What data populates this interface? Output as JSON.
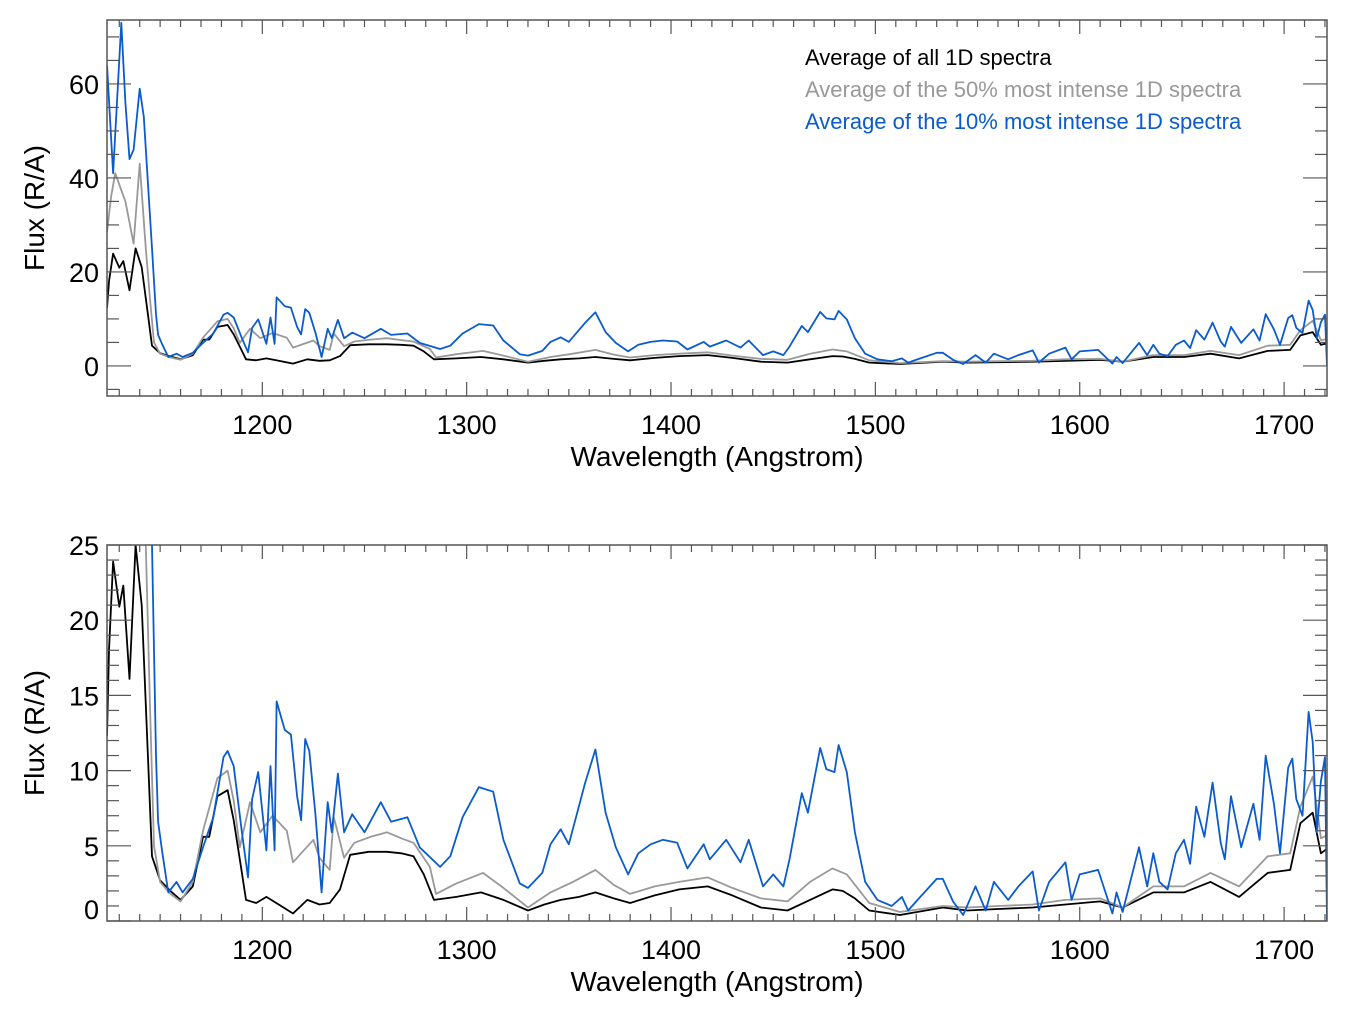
{
  "colors": {
    "all": "#000000",
    "top50": "#999999",
    "top10": "#0a5ccc",
    "frame": "#555555"
  },
  "chart_data": [
    {
      "type": "line",
      "title": "",
      "xlabel": "Wavelength (Angstrom)",
      "ylabel": "Flux (R/A)",
      "xlim": [
        1124,
        1721
      ],
      "ylim": [
        -6.4,
        73.6
      ],
      "xticks": [
        1200,
        1300,
        1400,
        1500,
        1600,
        1700
      ],
      "xtick_labels": [
        "1200",
        "1300",
        "1400",
        "1500",
        "1600",
        "1700"
      ],
      "yticks": [
        0,
        20,
        40,
        60
      ],
      "ytick_labels": [
        "0",
        "20",
        "40",
        "60"
      ],
      "x_minor_step": 10,
      "y_minor_step": 5,
      "grid": false,
      "legend_placement": "top-right",
      "legend": [
        "Average of all 1D spectra",
        "Average of the 50% most intense 1D spectra",
        "Average of the 10% most intense 1D spectra"
      ]
    },
    {
      "type": "line",
      "title": "",
      "xlabel": "Wavelength (Angstrom)",
      "ylabel": "Flux (R/A)",
      "xlim": [
        1124,
        1721
      ],
      "ylim": [
        0,
        25
      ],
      "xticks": [
        1200,
        1300,
        1400,
        1500,
        1600,
        1700
      ],
      "xtick_labels": [
        "1200",
        "1300",
        "1400",
        "1500",
        "1600",
        "1700"
      ],
      "yticks": [
        0,
        5,
        10,
        15,
        20,
        25
      ],
      "ytick_labels": [
        "0",
        "5",
        "10",
        "15",
        "20",
        "25"
      ],
      "x_minor_step": 10,
      "y_minor_step": 1,
      "grid": false
    }
  ],
  "series": [
    {
      "name": "Average of all 1D spectra",
      "color_key": "all",
      "points": [
        [
          1124,
          12.3
        ],
        [
          1125,
          18
        ],
        [
          1127,
          23.9
        ],
        [
          1130,
          20.9
        ],
        [
          1132,
          22.3
        ],
        [
          1135,
          16.1
        ],
        [
          1138,
          25
        ],
        [
          1141,
          21
        ],
        [
          1144,
          11
        ],
        [
          1146,
          4.3
        ],
        [
          1150,
          2.7
        ],
        [
          1155,
          2
        ],
        [
          1160,
          1.4
        ],
        [
          1166,
          2.3
        ],
        [
          1171,
          5.6
        ],
        [
          1174,
          5.6
        ],
        [
          1178,
          8.3
        ],
        [
          1183,
          8.7
        ],
        [
          1186,
          6.7
        ],
        [
          1190,
          3.2
        ],
        [
          1192,
          1.4
        ],
        [
          1197,
          1.2
        ],
        [
          1202,
          1.6
        ],
        [
          1208,
          1.1
        ],
        [
          1215,
          0.5
        ],
        [
          1222,
          1.4
        ],
        [
          1228,
          1.1
        ],
        [
          1233,
          1.2
        ],
        [
          1238,
          2.1
        ],
        [
          1243,
          4.4
        ],
        [
          1252,
          4.6
        ],
        [
          1261,
          4.6
        ],
        [
          1268,
          4.5
        ],
        [
          1274,
          4.3
        ],
        [
          1279,
          3.1
        ],
        [
          1284,
          1.4
        ],
        [
          1295,
          1.6
        ],
        [
          1307,
          1.9
        ],
        [
          1318,
          1.4
        ],
        [
          1330,
          0.7
        ],
        [
          1338,
          1.1
        ],
        [
          1346,
          1.4
        ],
        [
          1355,
          1.6
        ],
        [
          1363,
          1.9
        ],
        [
          1372,
          1.5
        ],
        [
          1380,
          1.2
        ],
        [
          1392,
          1.7
        ],
        [
          1404,
          2.1
        ],
        [
          1418,
          2.3
        ],
        [
          1430,
          1.7
        ],
        [
          1444,
          0.9
        ],
        [
          1457,
          0.7
        ],
        [
          1468,
          1.4
        ],
        [
          1479,
          2.1
        ],
        [
          1484,
          2
        ],
        [
          1490,
          1.5
        ],
        [
          1497,
          0.7
        ],
        [
          1512,
          0.4
        ],
        [
          1533,
          0.9
        ],
        [
          1545,
          0.7
        ],
        [
          1560,
          0.8
        ],
        [
          1577,
          0.9
        ],
        [
          1593,
          1.1
        ],
        [
          1610,
          1.3
        ],
        [
          1621,
          0.9
        ],
        [
          1636,
          1.9
        ],
        [
          1651,
          1.9
        ],
        [
          1664,
          2.6
        ],
        [
          1678,
          1.6
        ],
        [
          1692,
          3.2
        ],
        [
          1703,
          3.4
        ],
        [
          1708,
          6.5
        ],
        [
          1714,
          7.2
        ],
        [
          1718,
          4.5
        ],
        [
          1721,
          4.8
        ]
      ]
    },
    {
      "name": "Average of the 50% most intense 1D spectra",
      "color_key": "top50",
      "points": [
        [
          1124,
          28.5
        ],
        [
          1126,
          36
        ],
        [
          1128,
          41
        ],
        [
          1133,
          35
        ],
        [
          1137,
          26
        ],
        [
          1140,
          43
        ],
        [
          1143,
          25
        ],
        [
          1145,
          14.5
        ],
        [
          1147,
          5
        ],
        [
          1150,
          2.6
        ],
        [
          1155,
          1.8
        ],
        [
          1160,
          1.3
        ],
        [
          1166,
          2.6
        ],
        [
          1171,
          6
        ],
        [
          1178,
          9.5
        ],
        [
          1183,
          10
        ],
        [
          1186,
          8
        ],
        [
          1189,
          4.9
        ],
        [
          1194,
          7.9
        ],
        [
          1199,
          5.9
        ],
        [
          1205,
          7
        ],
        [
          1212,
          6
        ],
        [
          1215,
          3.9
        ],
        [
          1225,
          5.4
        ],
        [
          1228,
          4.2
        ],
        [
          1233,
          3.4
        ],
        [
          1235,
          6.9
        ],
        [
          1240,
          4.2
        ],
        [
          1245,
          5.2
        ],
        [
          1253,
          5.6
        ],
        [
          1261,
          5.9
        ],
        [
          1268,
          5.5
        ],
        [
          1274,
          5.2
        ],
        [
          1282,
          3.6
        ],
        [
          1285,
          1.8
        ],
        [
          1295,
          2.5
        ],
        [
          1308,
          3.2
        ],
        [
          1318,
          2.2
        ],
        [
          1330,
          0.9
        ],
        [
          1341,
          1.9
        ],
        [
          1352,
          2.6
        ],
        [
          1363,
          3.4
        ],
        [
          1372,
          2.4
        ],
        [
          1380,
          1.8
        ],
        [
          1392,
          2.3
        ],
        [
          1404,
          2.6
        ],
        [
          1418,
          2.9
        ],
        [
          1430,
          2.2
        ],
        [
          1444,
          1.5
        ],
        [
          1457,
          1.3
        ],
        [
          1468,
          2.6
        ],
        [
          1479,
          3.5
        ],
        [
          1486,
          3.1
        ],
        [
          1497,
          1.2
        ],
        [
          1512,
          0.6
        ],
        [
          1533,
          1
        ],
        [
          1545,
          0.9
        ],
        [
          1560,
          1
        ],
        [
          1577,
          1.1
        ],
        [
          1593,
          1.4
        ],
        [
          1610,
          1.5
        ],
        [
          1621,
          0.9
        ],
        [
          1636,
          2.3
        ],
        [
          1651,
          2.3
        ],
        [
          1664,
          3.2
        ],
        [
          1678,
          2.3
        ],
        [
          1692,
          4.3
        ],
        [
          1703,
          4.5
        ],
        [
          1708,
          7.6
        ],
        [
          1714,
          9.6
        ],
        [
          1718,
          5.5
        ],
        [
          1721,
          5.7
        ]
      ]
    },
    {
      "name": "Average of the 10% most intense 1D spectra",
      "color_key": "top10",
      "points": [
        [
          1124,
          64
        ],
        [
          1127,
          41
        ],
        [
          1131,
          73
        ],
        [
          1133,
          56
        ],
        [
          1135,
          44
        ],
        [
          1137,
          46
        ],
        [
          1140,
          59
        ],
        [
          1142,
          53
        ],
        [
          1146,
          25
        ],
        [
          1148,
          11
        ],
        [
          1149,
          6.6
        ],
        [
          1151,
          4.6
        ],
        [
          1154,
          1.9
        ],
        [
          1158,
          2.6
        ],
        [
          1161,
          1.9
        ],
        [
          1166,
          2.8
        ],
        [
          1171,
          4.9
        ],
        [
          1176,
          6.9
        ],
        [
          1181,
          10.9
        ],
        [
          1183,
          11.3
        ],
        [
          1186,
          10.3
        ],
        [
          1190,
          5.9
        ],
        [
          1193,
          2.9
        ],
        [
          1195,
          8.1
        ],
        [
          1198,
          9.9
        ],
        [
          1202,
          4.7
        ],
        [
          1204,
          10.3
        ],
        [
          1206,
          4.7
        ],
        [
          1207,
          14.6
        ],
        [
          1211,
          12.7
        ],
        [
          1214,
          12.4
        ],
        [
          1217,
          8.3
        ],
        [
          1219,
          6.7
        ],
        [
          1221,
          12.1
        ],
        [
          1223,
          11.3
        ],
        [
          1226,
          7.1
        ],
        [
          1229,
          1.9
        ],
        [
          1232,
          7.9
        ],
        [
          1234,
          5.9
        ],
        [
          1237,
          9.8
        ],
        [
          1240,
          5.9
        ],
        [
          1244,
          7.1
        ],
        [
          1250,
          5.9
        ],
        [
          1258,
          7.9
        ],
        [
          1263,
          6.6
        ],
        [
          1271,
          6.9
        ],
        [
          1277,
          4.9
        ],
        [
          1287,
          3.6
        ],
        [
          1292,
          4.3
        ],
        [
          1298,
          6.9
        ],
        [
          1306,
          8.9
        ],
        [
          1313,
          8.6
        ],
        [
          1318,
          5.4
        ],
        [
          1326,
          2.5
        ],
        [
          1330,
          2.2
        ],
        [
          1337,
          3.2
        ],
        [
          1341,
          5.1
        ],
        [
          1346,
          6.1
        ],
        [
          1350,
          5.1
        ],
        [
          1358,
          9.2
        ],
        [
          1363,
          11.4
        ],
        [
          1368,
          7.2
        ],
        [
          1373,
          4.9
        ],
        [
          1379,
          3.1
        ],
        [
          1384,
          4.5
        ],
        [
          1390,
          5.1
        ],
        [
          1396,
          5.4
        ],
        [
          1403,
          5.2
        ],
        [
          1408,
          3.5
        ],
        [
          1416,
          5.1
        ],
        [
          1419,
          4.1
        ],
        [
          1427,
          5.4
        ],
        [
          1434,
          3.9
        ],
        [
          1438,
          5.4
        ],
        [
          1445,
          2.3
        ],
        [
          1450,
          3.1
        ],
        [
          1455,
          2.3
        ],
        [
          1458,
          4.1
        ],
        [
          1464,
          8.5
        ],
        [
          1467,
          7.2
        ],
        [
          1473,
          11.5
        ],
        [
          1476,
          10.1
        ],
        [
          1480,
          9.9
        ],
        [
          1482,
          11.7
        ],
        [
          1486,
          9.9
        ],
        [
          1490,
          5.9
        ],
        [
          1495,
          2.6
        ],
        [
          1501,
          1.4
        ],
        [
          1508,
          1
        ],
        [
          1513,
          1.6
        ],
        [
          1516,
          0.7
        ],
        [
          1522,
          1.6
        ],
        [
          1530,
          2.8
        ],
        [
          1533,
          2.8
        ],
        [
          1538,
          1.3
        ],
        [
          1543,
          0.4
        ],
        [
          1549,
          2.3
        ],
        [
          1554,
          0.7
        ],
        [
          1558,
          2.6
        ],
        [
          1565,
          1.4
        ],
        [
          1570,
          2.3
        ],
        [
          1577,
          3.3
        ],
        [
          1580,
          0.7
        ],
        [
          1585,
          2.6
        ],
        [
          1593,
          3.9
        ],
        [
          1596,
          1.4
        ],
        [
          1600,
          3.1
        ],
        [
          1609,
          3.4
        ],
        [
          1616,
          0.5
        ],
        [
          1618,
          1.9
        ],
        [
          1621,
          0.6
        ],
        [
          1629,
          4.9
        ],
        [
          1633,
          2.3
        ],
        [
          1636,
          4.5
        ],
        [
          1639,
          2.6
        ],
        [
          1643,
          2.1
        ],
        [
          1647,
          4.5
        ],
        [
          1651,
          5.4
        ],
        [
          1654,
          3.8
        ],
        [
          1657,
          7.6
        ],
        [
          1661,
          5.6
        ],
        [
          1665,
          9.2
        ],
        [
          1669,
          5.2
        ],
        [
          1671,
          4.1
        ],
        [
          1674,
          8.3
        ],
        [
          1679,
          4.9
        ],
        [
          1685,
          7.8
        ],
        [
          1688,
          5.4
        ],
        [
          1691,
          11
        ],
        [
          1695,
          7.8
        ],
        [
          1698,
          4.5
        ],
        [
          1702,
          10.2
        ],
        [
          1704,
          10.8
        ],
        [
          1706,
          8.1
        ],
        [
          1709,
          7
        ],
        [
          1712,
          13.9
        ],
        [
          1714,
          11.9
        ],
        [
          1716,
          5.9
        ],
        [
          1718,
          9.3
        ],
        [
          1720,
          10.9
        ],
        [
          1721,
          0
        ]
      ]
    }
  ]
}
